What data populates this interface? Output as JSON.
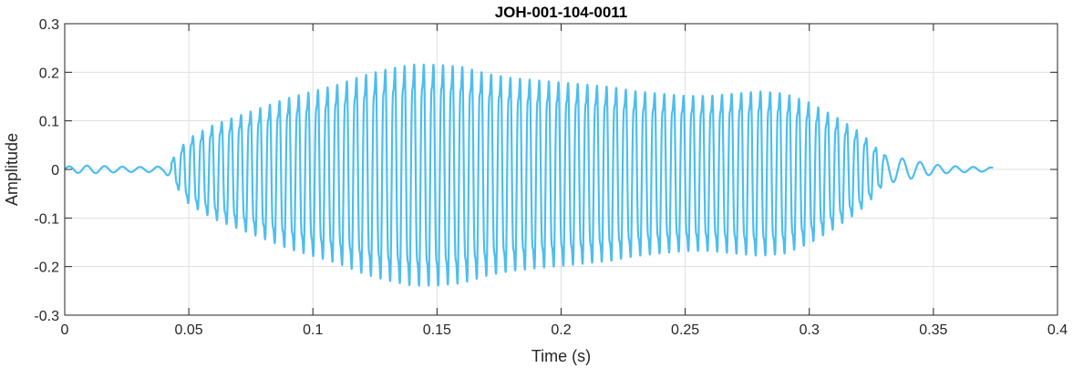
{
  "chart_data": {
    "type": "line",
    "title": "JOH-001-104-0011",
    "xlabel": "Time (s)",
    "ylabel": "Amplitude",
    "xlim": [
      0,
      0.4
    ],
    "ylim": [
      -0.3,
      0.3
    ],
    "xticks": [
      0,
      0.05,
      0.1,
      0.15,
      0.2,
      0.25,
      0.3,
      0.35,
      0.4
    ],
    "xtick_labels": [
      "0",
      "0.05",
      "0.1",
      "0.15",
      "0.2",
      "0.25",
      "0.3",
      "0.35",
      "0.4"
    ],
    "yticks": [
      -0.3,
      -0.2,
      -0.1,
      0,
      0.1,
      0.2,
      0.3
    ],
    "ytick_labels": [
      "-0.3",
      "-0.2",
      "-0.1",
      "0",
      "0.1",
      "0.2",
      "0.3"
    ],
    "grid": true,
    "series": [
      {
        "color": "#4DBEEE",
        "duration": 0.374,
        "carrier_frequency_hz": 258,
        "envelope": [
          [
            0.0,
            0.006
          ],
          [
            0.01,
            0.008
          ],
          [
            0.02,
            0.006
          ],
          [
            0.03,
            0.005
          ],
          [
            0.04,
            0.006
          ],
          [
            0.043,
            0.02
          ],
          [
            0.047,
            0.05
          ],
          [
            0.05,
            0.07
          ],
          [
            0.06,
            0.1
          ],
          [
            0.07,
            0.12
          ],
          [
            0.08,
            0.14
          ],
          [
            0.09,
            0.16
          ],
          [
            0.1,
            0.175
          ],
          [
            0.11,
            0.19
          ],
          [
            0.12,
            0.21
          ],
          [
            0.13,
            0.225
          ],
          [
            0.14,
            0.235
          ],
          [
            0.15,
            0.235
          ],
          [
            0.16,
            0.23
          ],
          [
            0.17,
            0.215
          ],
          [
            0.18,
            0.205
          ],
          [
            0.19,
            0.2
          ],
          [
            0.2,
            0.195
          ],
          [
            0.21,
            0.19
          ],
          [
            0.22,
            0.185
          ],
          [
            0.23,
            0.175
          ],
          [
            0.24,
            0.17
          ],
          [
            0.25,
            0.165
          ],
          [
            0.26,
            0.165
          ],
          [
            0.27,
            0.17
          ],
          [
            0.28,
            0.175
          ],
          [
            0.29,
            0.17
          ],
          [
            0.3,
            0.15
          ],
          [
            0.31,
            0.12
          ],
          [
            0.32,
            0.085
          ],
          [
            0.325,
            0.06
          ],
          [
            0.33,
            0.03
          ],
          [
            0.34,
            0.02
          ],
          [
            0.35,
            0.01
          ],
          [
            0.36,
            0.006
          ],
          [
            0.374,
            0.004
          ]
        ]
      }
    ]
  }
}
